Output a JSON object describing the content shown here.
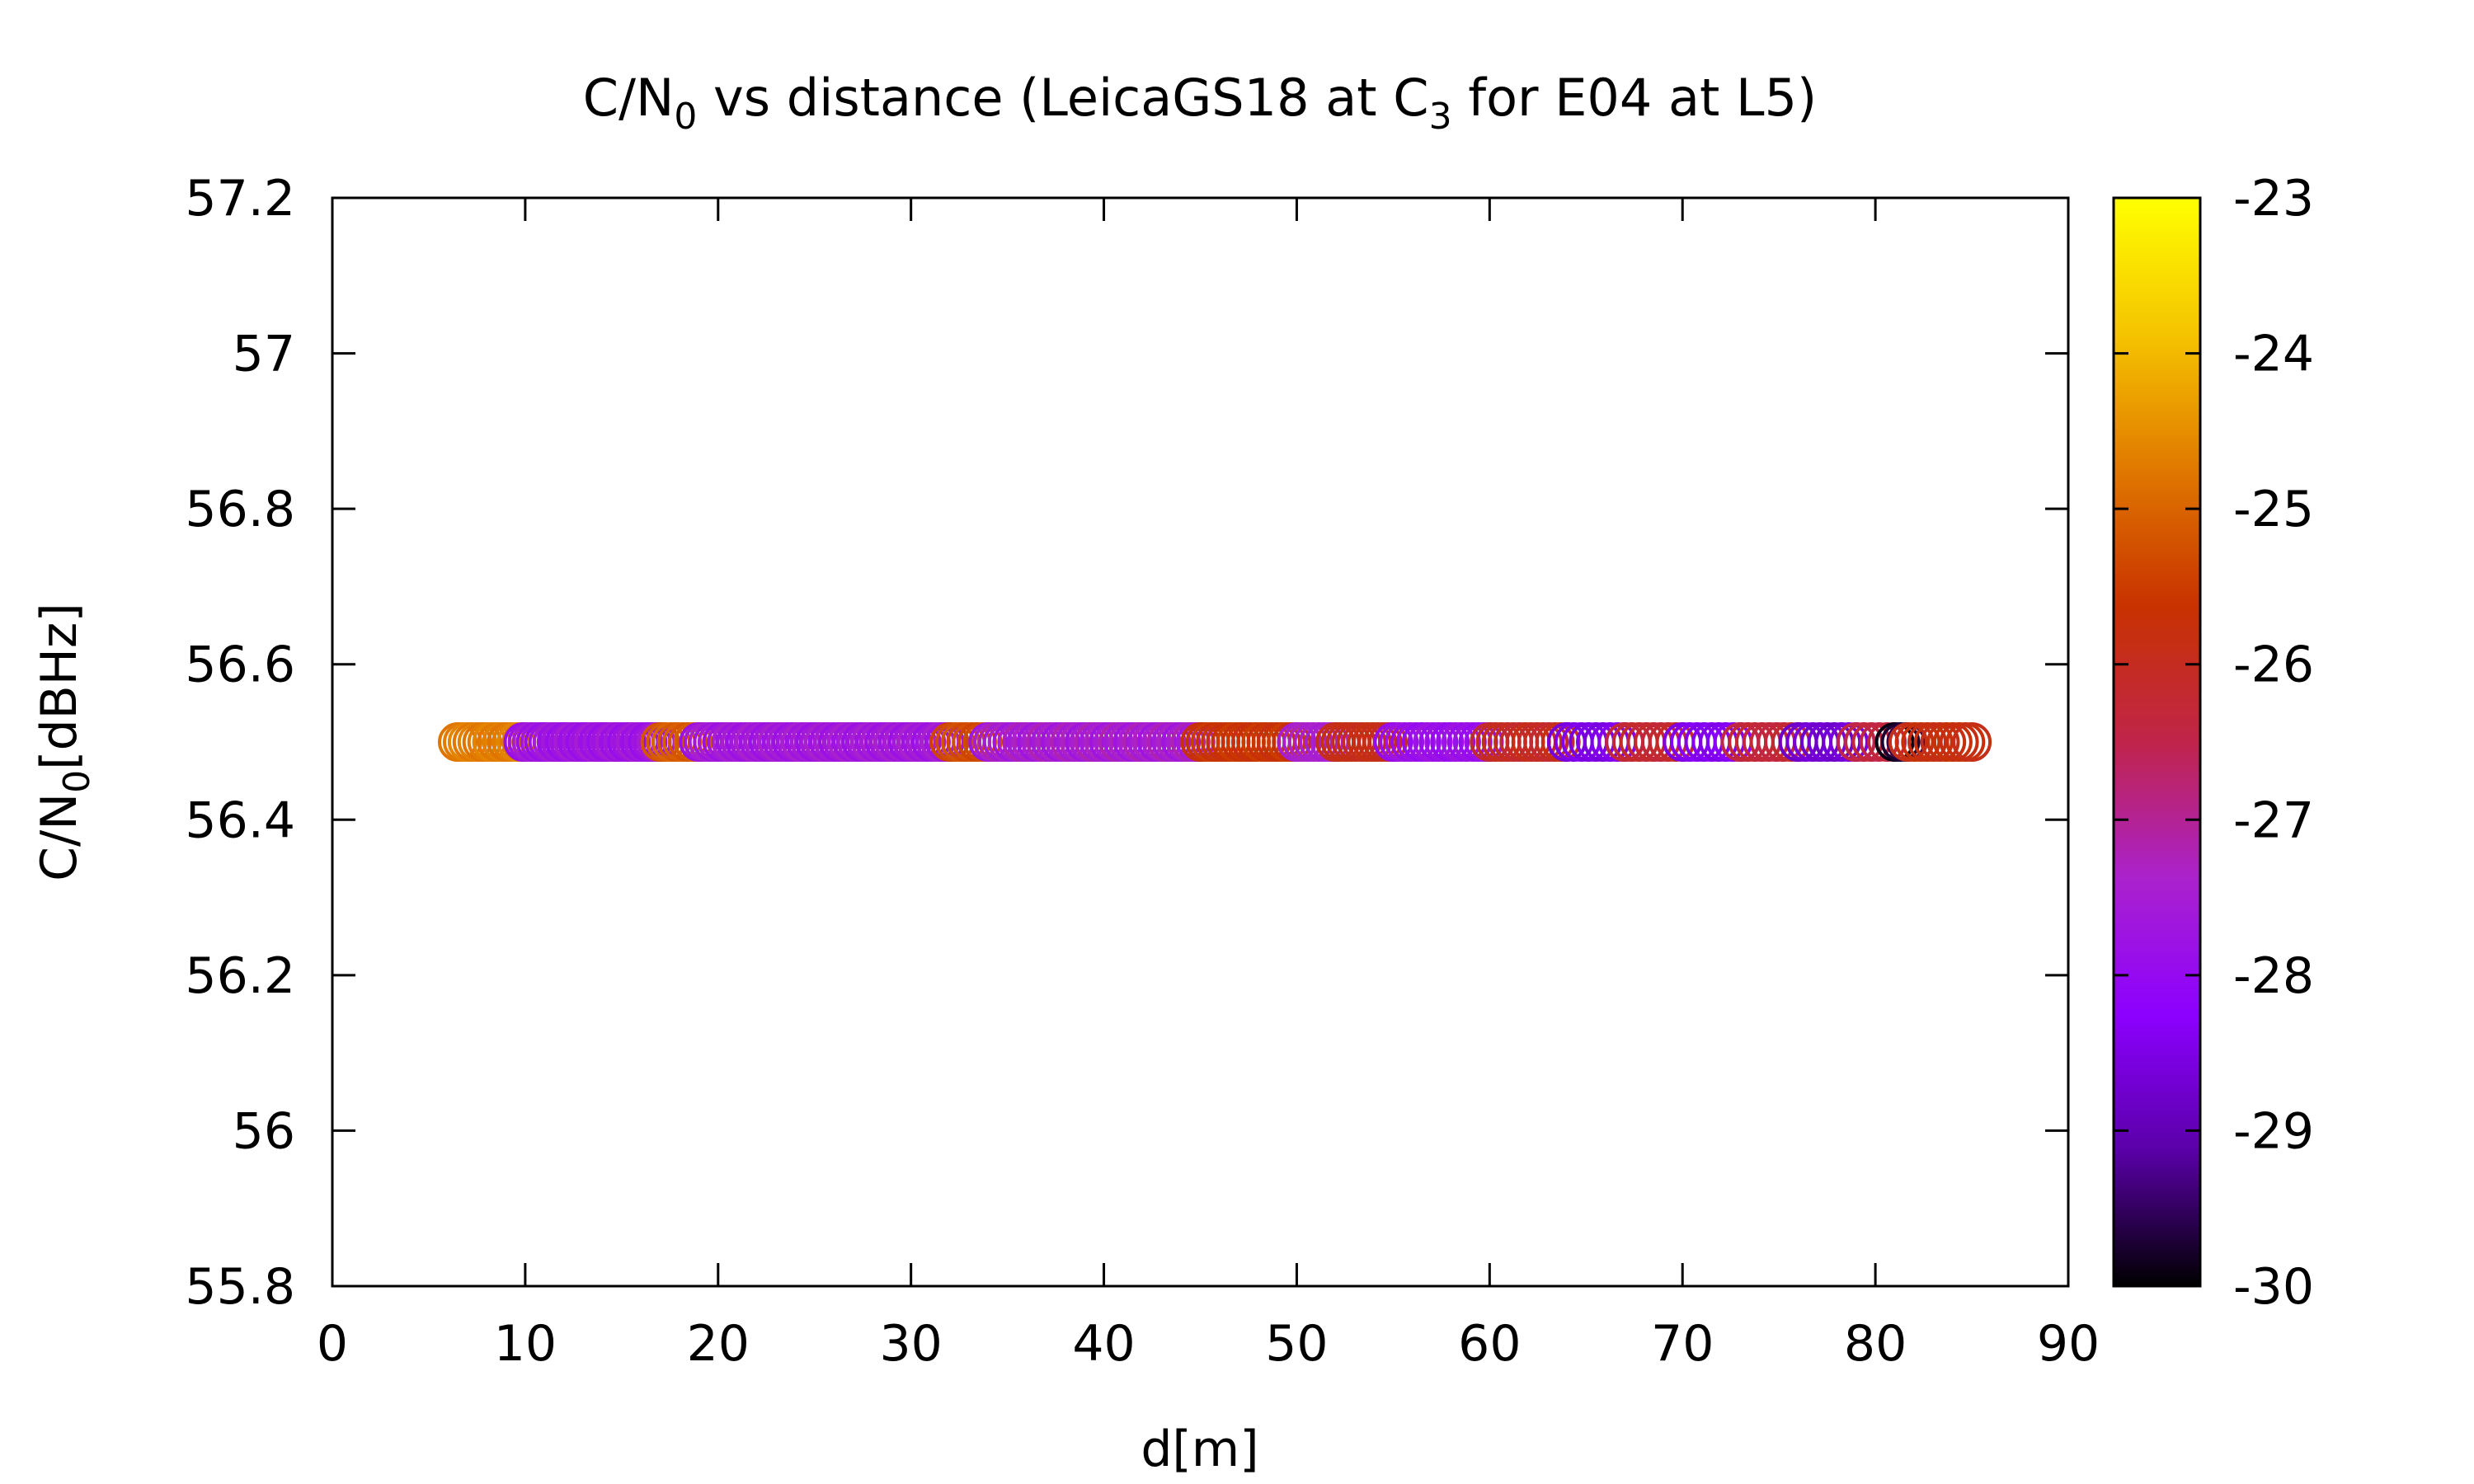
{
  "chart_data": {
    "type": "scatter",
    "title_parts": {
      "a": "C/N",
      "a_sub": "0",
      "b": " vs distance (LeicaGS18 at C",
      "b_sub": "3",
      "c": " for E04 at L5)"
    },
    "xlabel": "d[m]",
    "ylabel_parts": {
      "a": "C/N",
      "a_sub": "0",
      "b": "[dBHz]"
    },
    "xlim": [
      0,
      90
    ],
    "ylim": [
      55.8,
      57.2
    ],
    "x_ticks": [
      "0",
      "10",
      "20",
      "30",
      "40",
      "50",
      "60",
      "70",
      "80",
      "90"
    ],
    "y_ticks": [
      "55.8",
      "56",
      "56.2",
      "56.4",
      "56.6",
      "56.8",
      "57",
      "57.2"
    ],
    "colorbar": {
      "range": [
        -30,
        -23
      ],
      "ticks": [
        "-30",
        "-29",
        "-28",
        "-27",
        "-26",
        "-25",
        "-24",
        "-23"
      ],
      "palette": [
        "#000000",
        "#5a00a8",
        "#8c00ff",
        "#aa22cc",
        "#c0244a",
        "#c83200",
        "#e07800",
        "#f5c400",
        "#ffff00"
      ]
    },
    "marker": "open-circle",
    "grid": false,
    "segments": [
      {
        "x0": 6.5,
        "x1": 9.8,
        "n": 14,
        "c": [
          -24.8,
          -24.6
        ]
      },
      {
        "x0": 9.9,
        "x1": 17.0,
        "n": 34,
        "c": [
          -27.9,
          -27.5
        ]
      },
      {
        "x0": 17.0,
        "x1": 19.0,
        "n": 8,
        "c": [
          -25.2,
          -25.0
        ]
      },
      {
        "x0": 19.0,
        "x1": 32.0,
        "n": 55,
        "c": [
          -27.8,
          -27.4
        ]
      },
      {
        "x0": 32.0,
        "x1": 34.0,
        "n": 8,
        "c": [
          -25.4,
          -25.2
        ]
      },
      {
        "x0": 34.0,
        "x1": 45.0,
        "n": 45,
        "c": [
          -27.7,
          -27.2
        ]
      },
      {
        "x0": 45.0,
        "x1": 50.0,
        "n": 20,
        "c": [
          -25.8,
          -25.5
        ]
      },
      {
        "x0": 50.0,
        "x1": 52.0,
        "n": 8,
        "c": [
          -27.5,
          -27.3
        ]
      },
      {
        "x0": 52.0,
        "x1": 55.0,
        "n": 12,
        "c": [
          -26.0,
          -25.8
        ]
      },
      {
        "x0": 55.0,
        "x1": 60.0,
        "n": 18,
        "c": [
          -28.0,
          -27.7
        ]
      },
      {
        "x0": 60.0,
        "x1": 64.0,
        "n": 14,
        "c": [
          -26.2,
          -25.9
        ]
      },
      {
        "x0": 64.0,
        "x1": 67.0,
        "n": 9,
        "c": [
          -28.6,
          -28.4
        ]
      },
      {
        "x0": 67.0,
        "x1": 70.0,
        "n": 9,
        "c": [
          -26.3,
          -26.1
        ]
      },
      {
        "x0": 70.0,
        "x1": 73.0,
        "n": 9,
        "c": [
          -28.5,
          -28.3
        ]
      },
      {
        "x0": 73.0,
        "x1": 76.0,
        "n": 9,
        "c": [
          -26.4,
          -26.2
        ]
      },
      {
        "x0": 76.0,
        "x1": 79.0,
        "n": 9,
        "c": [
          -28.8,
          -28.6
        ]
      },
      {
        "x0": 79.0,
        "x1": 81.0,
        "n": 6,
        "c": [
          -26.5,
          -26.3
        ]
      },
      {
        "x0": 81.0,
        "x1": 81.6,
        "n": 3,
        "c": [
          -29.9,
          -29.6
        ]
      },
      {
        "x0": 81.7,
        "x1": 85.0,
        "n": 11,
        "c": [
          -25.9,
          -25.7
        ]
      }
    ],
    "y_value": 56.5
  }
}
